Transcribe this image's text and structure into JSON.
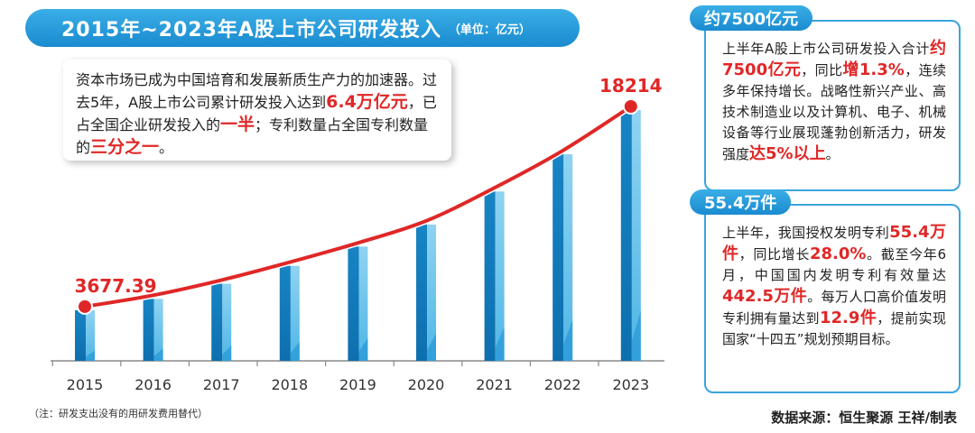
{
  "header": {
    "title": "2015年~2023年A股上市公司研发投入",
    "unit": "（单位：亿元）"
  },
  "intro": {
    "t1": "资本市场已成为中国培育和发展新质生产力的加速器。过去5年，A股上市公司累计研发投入达到",
    "h1": "6.4万亿元",
    "t2": "，已占全国企业研发投入的",
    "h2": "一半",
    "t3": "；专利数量占全国专利数量的",
    "h3": "三分之一",
    "t4": "。"
  },
  "panel1": {
    "tag": "约7500亿元",
    "t1": "上半年A股上市公司研发投入合计",
    "h1": "约7500亿元",
    "t2": "，同比",
    "h2": "增1.3%",
    "t3": "，连续多年保持增长。战略性新兴产业、高技术制造业以及计算机、电子、机械设备等行业展现蓬勃创新活力，研发强度",
    "h3": "达5%以上",
    "t4": "。"
  },
  "panel2": {
    "tag": "55.4万件",
    "t1": "上半年，我国授权发明专利",
    "h1": "55.4万件",
    "t2": "，同比增长",
    "h2": "28.0%",
    "t3": "。截至今年6月，中国国内发明专利有效量达",
    "h3": "442.5万件",
    "t4": "。每万人口高价值发明专利拥有量达到",
    "h4": "12.9件",
    "t5": "，提前实现国家“十四五”规划预期目标。"
  },
  "footnote": "（注：研发支出没有的用研发费用替代）",
  "source": "数据来源：恒生聚源  王祥/制表",
  "colors": {
    "accent_blue": "#1a8bd0",
    "bar_dark": "#1784c4",
    "bar_light": "#8fd3f2",
    "highlight_red": "#e02727",
    "curve_red": "#e02727"
  },
  "chart_data": {
    "type": "bar",
    "categories": [
      "2015",
      "2016",
      "2017",
      "2018",
      "2019",
      "2020",
      "2021",
      "2022",
      "2023"
    ],
    "values": [
      3677.39,
      4500,
      5600,
      6900,
      8300,
      9900,
      12300,
      15000,
      18214
    ],
    "labeled_points": {
      "2015": "3677.39",
      "2023": "18214"
    },
    "overlay": "line",
    "grid": false,
    "legend": "none"
  }
}
